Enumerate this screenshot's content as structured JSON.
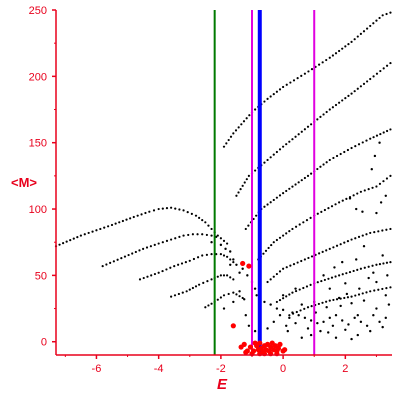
{
  "colors": {
    "axis": "#e8001c",
    "points": "#000000",
    "highlight_points": "#ff0000",
    "line_green": "#007a00",
    "line_blue": "#0000ff",
    "line_magenta": "#e000e0"
  },
  "chart_data": {
    "type": "scatter",
    "xlabel": "E",
    "ylabel": "<M>",
    "xlim": [
      -7.3,
      3.5
    ],
    "ylim": [
      -10,
      250
    ],
    "xticks": [
      -6,
      -4,
      -2,
      0,
      2
    ],
    "yticks": [
      0,
      50,
      100,
      150,
      200,
      250
    ],
    "grid": false,
    "vertical_lines": [
      {
        "x": -2.2,
        "color": "green",
        "width": "thin"
      },
      {
        "x": -1.0,
        "color": "magenta",
        "width": "thin"
      },
      {
        "x": -0.75,
        "color": "blue",
        "width": "thick"
      },
      {
        "x": 1.0,
        "color": "magenta",
        "width": "thin"
      }
    ],
    "series": [
      {
        "points": [
          [
            -7.3,
            72
          ],
          [
            -6.5,
            80
          ],
          [
            -5.5,
            88
          ],
          [
            -4.8,
            94
          ],
          [
            -4.3,
            98
          ],
          [
            -4.0,
            100
          ],
          [
            -3.6,
            101
          ],
          [
            -3.2,
            99
          ],
          [
            -2.8,
            95
          ],
          [
            -2.5,
            90
          ],
          [
            -2.3,
            85
          ],
          [
            -2.1,
            80
          ]
        ]
      },
      {
        "points": [
          [
            -5.8,
            57
          ],
          [
            -5.2,
            63
          ],
          [
            -4.5,
            70
          ],
          [
            -4.0,
            74
          ],
          [
            -3.6,
            77
          ],
          [
            -3.2,
            80
          ],
          [
            -2.9,
            81
          ],
          [
            -2.6,
            81
          ],
          [
            -2.3,
            80
          ],
          [
            -2.0,
            78
          ],
          [
            -1.8,
            74
          ]
        ]
      },
      {
        "points": [
          [
            -4.6,
            47
          ],
          [
            -4.0,
            52
          ],
          [
            -3.5,
            57
          ],
          [
            -3.0,
            61
          ],
          [
            -2.6,
            65
          ],
          [
            -2.3,
            66
          ],
          [
            -2.0,
            66
          ],
          [
            -1.8,
            64
          ],
          [
            -1.6,
            60
          ]
        ]
      },
      {
        "points": [
          [
            -3.6,
            34
          ],
          [
            -3.1,
            38
          ],
          [
            -2.7,
            43
          ],
          [
            -2.3,
            47
          ],
          [
            -2.0,
            50
          ],
          [
            -1.8,
            50
          ],
          [
            -1.6,
            47
          ]
        ]
      },
      {
        "points": [
          [
            -2.5,
            26
          ],
          [
            -2.2,
            30
          ],
          [
            -1.9,
            35
          ],
          [
            -1.6,
            37
          ],
          [
            -1.3,
            33
          ]
        ]
      },
      {
        "points": [
          [
            -1.9,
            147
          ],
          [
            -1.6,
            157
          ],
          [
            -1.0,
            173
          ],
          [
            -0.5,
            183
          ],
          [
            0.0,
            192
          ],
          [
            0.7,
            202
          ],
          [
            1.5,
            214
          ],
          [
            2.2,
            226
          ],
          [
            2.8,
            238
          ],
          [
            3.2,
            246
          ],
          [
            3.45,
            248
          ]
        ]
      },
      {
        "points": [
          [
            -1.5,
            110
          ],
          [
            -1.1,
            125
          ],
          [
            -0.5,
            137
          ],
          [
            0.0,
            147
          ],
          [
            0.8,
            162
          ],
          [
            1.5,
            175
          ],
          [
            2.2,
            187
          ],
          [
            2.8,
            198
          ],
          [
            3.45,
            210
          ]
        ]
      },
      {
        "points": [
          [
            -1.2,
            85
          ],
          [
            -0.7,
            100
          ],
          [
            0.0,
            112
          ],
          [
            0.8,
            125
          ],
          [
            1.5,
            137
          ],
          [
            2.2,
            146
          ],
          [
            2.8,
            153
          ],
          [
            3.45,
            160
          ]
        ]
      },
      {
        "points": [
          [
            -0.8,
            62
          ],
          [
            -0.3,
            75
          ],
          [
            0.3,
            85
          ],
          [
            1.0,
            95
          ],
          [
            1.8,
            105
          ],
          [
            2.5,
            113
          ],
          [
            3.0,
            117
          ],
          [
            3.45,
            125
          ]
        ]
      },
      {
        "points": [
          [
            -0.5,
            45
          ],
          [
            0.0,
            55
          ],
          [
            0.7,
            62
          ],
          [
            1.5,
            70
          ],
          [
            2.2,
            77
          ],
          [
            2.8,
            82
          ],
          [
            3.45,
            85
          ]
        ]
      },
      {
        "points": [
          [
            -0.2,
            30
          ],
          [
            0.3,
            37
          ],
          [
            1.0,
            44
          ],
          [
            1.8,
            50
          ],
          [
            2.5,
            55
          ],
          [
            3.0,
            58
          ],
          [
            3.45,
            60
          ]
        ]
      },
      {
        "points": [
          [
            0.2,
            20
          ],
          [
            0.8,
            26
          ],
          [
            1.5,
            31
          ],
          [
            2.2,
            34
          ],
          [
            2.8,
            38
          ],
          [
            3.45,
            41
          ]
        ]
      }
    ],
    "scatter_points": [
      [
        -2.3,
        75
      ],
      [
        -2.0,
        73
      ],
      [
        -1.85,
        70
      ],
      [
        -1.7,
        68
      ],
      [
        -1.6,
        62
      ],
      [
        -1.5,
        58
      ],
      [
        -1.3,
        55
      ],
      [
        -1.15,
        50
      ],
      [
        -1.0,
        45
      ],
      [
        -1.7,
        58
      ],
      [
        -1.4,
        52
      ],
      [
        -0.9,
        40
      ],
      [
        -0.85,
        35
      ],
      [
        -0.6,
        30
      ],
      [
        -0.4,
        28
      ],
      [
        -0.2,
        25
      ],
      [
        0.0,
        24
      ],
      [
        0.3,
        22
      ],
      [
        0.5,
        20
      ],
      [
        0.7,
        18
      ],
      [
        0.9,
        16
      ],
      [
        1.1,
        14
      ],
      [
        1.3,
        15
      ],
      [
        1.5,
        18
      ],
      [
        1.7,
        20
      ],
      [
        1.9,
        16
      ],
      [
        2.1,
        13
      ],
      [
        2.3,
        18
      ],
      [
        2.5,
        15
      ],
      [
        2.7,
        12
      ],
      [
        2.9,
        20
      ],
      [
        3.1,
        15
      ],
      [
        3.3,
        18
      ],
      [
        0.4,
        14
      ],
      [
        0.8,
        10
      ],
      [
        1.2,
        8
      ],
      [
        1.6,
        12
      ],
      [
        2.0,
        9
      ],
      [
        2.4,
        5
      ],
      [
        2.8,
        8
      ],
      [
        3.2,
        11
      ],
      [
        0.6,
        28
      ],
      [
        1.0,
        30
      ],
      [
        1.4,
        26
      ],
      [
        1.8,
        33
      ],
      [
        2.2,
        29
      ],
      [
        2.6,
        31
      ],
      [
        3.0,
        25
      ],
      [
        3.4,
        28
      ],
      [
        -0.3,
        15
      ],
      [
        0.1,
        12
      ],
      [
        0.2,
        18
      ],
      [
        1.5,
        40
      ],
      [
        2.0,
        44
      ],
      [
        2.4,
        20
      ],
      [
        3.3,
        35
      ],
      [
        -1.2,
        20
      ],
      [
        -1.1,
        12
      ],
      [
        -0.9,
        8
      ],
      [
        -0.5,
        10
      ],
      [
        -1.4,
        38
      ],
      [
        -1.6,
        30
      ],
      [
        -1.9,
        25
      ],
      [
        -1.25,
        32
      ],
      [
        0.9,
        5
      ],
      [
        1.7,
        3
      ],
      [
        2.2,
        2
      ],
      [
        3.0,
        45
      ],
      [
        2.9,
        52
      ],
      [
        3.2,
        65
      ],
      [
        2.6,
        72
      ],
      [
        1.3,
        50
      ],
      [
        1.9,
        60
      ],
      [
        0.4,
        40
      ],
      [
        0.0,
        35
      ],
      [
        -0.1,
        20
      ],
      [
        0.15,
        8
      ],
      [
        0.6,
        3
      ],
      [
        1.05,
        22
      ],
      [
        1.45,
        7
      ],
      [
        1.85,
        27
      ],
      [
        2.05,
        36
      ],
      [
        2.45,
        40
      ],
      [
        2.75,
        48
      ],
      [
        3.35,
        50
      ],
      [
        2.35,
        62
      ],
      [
        1.65,
        56
      ],
      [
        2.15,
        108
      ],
      [
        2.35,
        100
      ],
      [
        2.55,
        98
      ],
      [
        3.0,
        97
      ],
      [
        3.15,
        105
      ],
      [
        3.3,
        110
      ],
      [
        2.85,
        130
      ],
      [
        2.95,
        140
      ],
      [
        3.1,
        150
      ]
    ],
    "highlight_points": [
      [
        -1.3,
        59
      ],
      [
        -1.1,
        57
      ],
      [
        -1.6,
        12
      ],
      [
        -1.25,
        -2
      ],
      [
        -1.15,
        -7
      ],
      [
        -1.05,
        -4
      ],
      [
        -0.95,
        -7
      ],
      [
        -0.85,
        -3
      ],
      [
        -0.8,
        -6
      ],
      [
        -0.75,
        -1
      ],
      [
        -0.7,
        -5
      ],
      [
        -0.65,
        -8
      ],
      [
        -0.6,
        -3
      ],
      [
        -0.55,
        -6
      ],
      [
        -0.5,
        -2
      ],
      [
        -0.45,
        -7
      ],
      [
        -0.4,
        -4
      ],
      [
        -0.35,
        -1
      ],
      [
        -0.3,
        -6
      ],
      [
        -0.25,
        -3
      ],
      [
        -0.2,
        -7
      ],
      [
        -0.15,
        -5
      ],
      [
        -0.9,
        -1
      ],
      [
        -1.0,
        -9
      ],
      [
        -0.6,
        -9
      ],
      [
        -0.4,
        -9
      ],
      [
        -0.2,
        -9
      ],
      [
        -0.1,
        -2
      ],
      [
        0.05,
        -6
      ],
      [
        -1.2,
        -8
      ],
      [
        -1.35,
        -4
      ],
      [
        -0.75,
        -9
      ],
      [
        0.0,
        -7
      ]
    ]
  }
}
